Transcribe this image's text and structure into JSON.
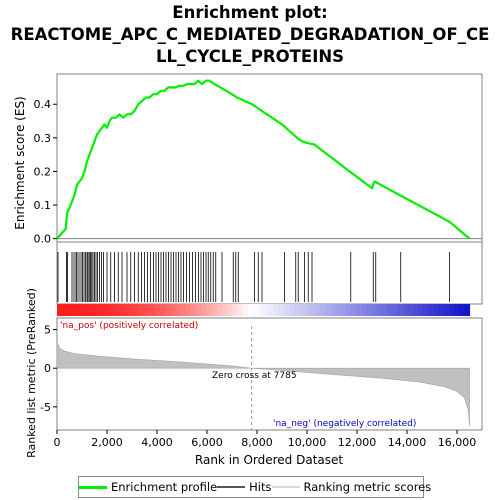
{
  "title_lines": [
    "Enrichment plot:",
    "REACTOME_APC_C_MEDIATED_DEGRADATION_OF_CE",
    "LL_CYCLE_PROTEINS"
  ],
  "chart_data": {
    "type": "line",
    "panels": {
      "enrichment": {
        "ylabel": "Enrichment score (ES)",
        "ylim": [
          -0.01,
          0.49
        ],
        "yticks": [
          "0.0",
          "0.1",
          "0.2",
          "0.3",
          "0.4"
        ],
        "ytick_values": [
          0.0,
          0.1,
          0.2,
          0.3,
          0.4
        ],
        "series": [
          {
            "name": "Enrichment profile",
            "color": "#00ee00",
            "x": [
              0,
              350,
              400,
              600,
              700,
              800,
              900,
              1000,
              1100,
              1200,
              1300,
              1400,
              1500,
              1600,
              1700,
              1800,
              1900,
              2000,
              2100,
              2200,
              2350,
              2500,
              2650,
              2800,
              2950,
              3100,
              3250,
              3400,
              3550,
              3700,
              3850,
              4000,
              4150,
              4300,
              4450,
              4600,
              4750,
              4900,
              5050,
              5200,
              5350,
              5500,
              5650,
              5800,
              5950,
              6100,
              6300,
              7000,
              7200,
              7800,
              8200,
              9000,
              9600,
              9800,
              10000,
              10300,
              11700,
              12600,
              12700,
              13700,
              15700,
              16500
            ],
            "y": [
              0.0,
              0.03,
              0.075,
              0.11,
              0.13,
              0.16,
              0.17,
              0.18,
              0.2,
              0.23,
              0.25,
              0.27,
              0.29,
              0.31,
              0.32,
              0.33,
              0.34,
              0.33,
              0.35,
              0.36,
              0.36,
              0.37,
              0.36,
              0.37,
              0.37,
              0.38,
              0.4,
              0.41,
              0.42,
              0.42,
              0.43,
              0.43,
              0.44,
              0.44,
              0.45,
              0.45,
              0.45,
              0.455,
              0.455,
              0.46,
              0.46,
              0.46,
              0.47,
              0.46,
              0.47,
              0.47,
              0.46,
              0.43,
              0.42,
              0.4,
              0.38,
              0.34,
              0.3,
              0.29,
              0.285,
              0.28,
              0.2,
              0.15,
              0.17,
              0.13,
              0.05,
              0.0
            ]
          }
        ]
      },
      "hits": {
        "positions": [
          40,
          380,
          420,
          600,
          680,
          760,
          800,
          880,
          960,
          1020,
          1080,
          1140,
          1200,
          1240,
          1290,
          1340,
          1390,
          1440,
          1500,
          1560,
          1620,
          1700,
          1780,
          1860,
          2000,
          2150,
          2300,
          2450,
          2600,
          2800,
          2950,
          3100,
          3250,
          3380,
          3500,
          3620,
          3740,
          3860,
          3960,
          4060,
          4160,
          4260,
          4360,
          4460,
          4560,
          4660,
          4760,
          4860,
          4960,
          5060,
          5180,
          5300,
          5420,
          5540,
          5660,
          5760,
          5860,
          5960,
          6050,
          6150,
          6250,
          6350,
          6600,
          7050,
          7150,
          7250,
          7900,
          8050,
          8200,
          9100,
          9550,
          9650,
          9900,
          10050,
          10200,
          11750,
          12650,
          12750,
          13750,
          15700
        ]
      },
      "ranked_metric": {
        "ylabel": "Ranked list metric (PreRanked)",
        "ylim": [
          -8,
          6.5
        ],
        "yticks": [
          "5",
          "0",
          "-5"
        ],
        "ytick_values": [
          5,
          0,
          -5
        ],
        "x": [
          0,
          100,
          300,
          700,
          1500,
          3000,
          5000,
          7000,
          7785,
          9000,
          11000,
          13000,
          14500,
          15500,
          16000,
          16300,
          16450,
          16500
        ],
        "values": [
          3.5,
          2.6,
          2.2,
          1.9,
          1.6,
          1.2,
          0.8,
          0.3,
          0.0,
          -0.3,
          -0.8,
          -1.3,
          -1.8,
          -2.4,
          -3.0,
          -3.8,
          -5.5,
          -7.5
        ],
        "pos_label": "'na_pos' (positively correlated)",
        "neg_label": "'na_neg' (negatively correlated)",
        "zero_cross_label": "Zero cross at 7785",
        "zero_cross": 7785
      }
    },
    "x_total": 16500,
    "xlim": [
      0,
      17000
    ],
    "xticks": [
      "0",
      "2,000",
      "4,000",
      "6,000",
      "8,000",
      "10,000",
      "12,000",
      "14,000",
      "16,000"
    ],
    "xtick_values": [
      0,
      2000,
      4000,
      6000,
      8000,
      10000,
      12000,
      14000,
      16000
    ],
    "xlabel": "Rank in Ordered Dataset"
  },
  "legend": {
    "items": [
      {
        "label": "Enrichment profile",
        "color": "#00ee00",
        "name": "legend-enrichment-profile"
      },
      {
        "label": "Hits",
        "color": "#555555",
        "name": "legend-hits"
      },
      {
        "label": "Ranking metric scores",
        "color": "#d8d8d8",
        "name": "legend-ranking-metric-scores"
      }
    ]
  }
}
